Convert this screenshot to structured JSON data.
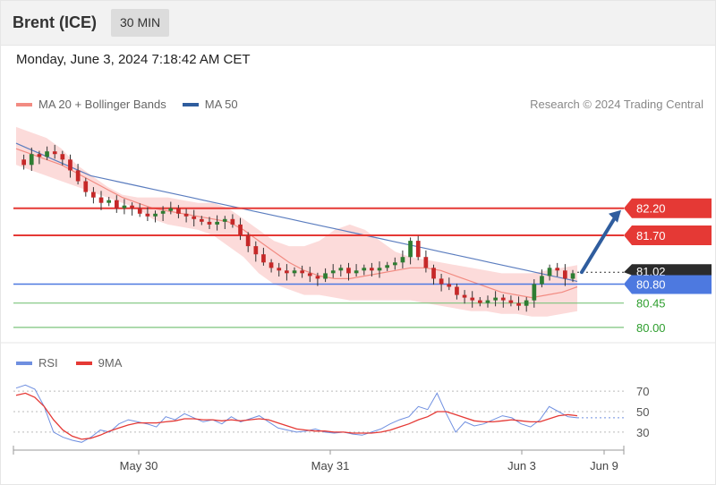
{
  "header": {
    "title": "Brent (ICE)",
    "interval": "30 MIN"
  },
  "datetime": "Monday, June 3, 2024 7:18:42 AM CET",
  "legend": [
    {
      "label": "MA 20 + Bollinger Bands",
      "color": "#f28b82"
    },
    {
      "label": "MA 50",
      "color": "#2f5d9e"
    }
  ],
  "credit": "Research © 2024 Trading Central",
  "rsi_legend": [
    {
      "label": "RSI",
      "color": "#6f8fe0"
    },
    {
      "label": "9MA",
      "color": "#e53935"
    }
  ],
  "colors": {
    "up": "#2e7d32",
    "down": "#c62828",
    "resistance": "#e53935",
    "support": "#4d79e0",
    "target": "#7cc47c",
    "ma20": "#f28b82",
    "ma50": "#5b7dbf",
    "band": "#fbd5d3",
    "arrow": "#2f5d9e"
  },
  "chart_data": [
    {
      "type": "candlestick",
      "title": "Brent (ICE)",
      "x_ticks": [
        "May 30",
        "May 31",
        "Jun 3",
        "Jun 9"
      ],
      "ylim": [
        79.8,
        83.6
      ],
      "last_price": "81.02",
      "levels": [
        {
          "value": 82.2,
          "label": "82.20",
          "kind": "resistance"
        },
        {
          "value": 81.7,
          "label": "81.70",
          "kind": "resistance"
        },
        {
          "value": 80.8,
          "label": "80.80",
          "kind": "support"
        },
        {
          "value": 80.45,
          "label": "80.45",
          "kind": "target"
        },
        {
          "value": 80.0,
          "label": "80.00",
          "kind": "target"
        }
      ],
      "close": [
        83.1,
        83.0,
        83.2,
        83.15,
        83.25,
        83.2,
        83.1,
        82.9,
        82.7,
        82.5,
        82.4,
        82.3,
        82.35,
        82.2,
        82.25,
        82.2,
        82.1,
        82.05,
        82.1,
        82.15,
        82.2,
        82.1,
        82.05,
        82.0,
        81.95,
        81.9,
        81.95,
        82.0,
        81.9,
        81.7,
        81.5,
        81.35,
        81.2,
        81.1,
        81.05,
        81.0,
        81.05,
        81.0,
        80.95,
        80.9,
        81.0,
        81.05,
        81.1,
        81.0,
        81.05,
        81.1,
        81.05,
        81.1,
        81.15,
        81.2,
        81.3,
        81.6,
        81.3,
        81.1,
        80.9,
        80.8,
        80.75,
        80.6,
        80.55,
        80.5,
        80.45,
        80.5,
        80.55,
        80.5,
        80.45,
        80.4,
        80.5,
        80.8,
        80.95,
        81.1,
        81.05,
        80.9,
        81.0
      ],
      "ma50": [
        83.4,
        83.3,
        83.2,
        83.1,
        83.0,
        82.9,
        82.8,
        82.75,
        82.7,
        82.65,
        82.6,
        82.55,
        82.5,
        82.45,
        82.4,
        82.35,
        82.3,
        82.25,
        82.2,
        82.15,
        82.1,
        82.05,
        82.0,
        81.95,
        81.9,
        81.85,
        81.8,
        81.75,
        81.7,
        81.65,
        81.6,
        81.55,
        81.5,
        81.45,
        81.4,
        81.35,
        81.3,
        81.25,
        81.2,
        81.15,
        81.1,
        81.05,
        81.0,
        80.95,
        80.9,
        80.85
      ],
      "ma20": [
        83.3,
        83.2,
        83.1,
        83.0,
        82.85,
        82.7,
        82.55,
        82.4,
        82.3,
        82.2,
        82.15,
        82.1,
        82.05,
        82.0,
        81.95,
        81.8,
        81.6,
        81.4,
        81.2,
        81.05,
        80.95,
        80.9,
        80.9,
        80.95,
        81.0,
        81.05,
        81.1,
        81.1,
        81.05,
        80.95,
        80.85,
        80.75,
        80.65,
        80.6,
        80.55,
        80.6,
        80.65,
        80.75
      ],
      "bb_upper": [
        83.7,
        83.6,
        83.5,
        83.3,
        83.0,
        82.8,
        82.6,
        82.45,
        82.4,
        82.4,
        82.4,
        82.35,
        82.3,
        82.3,
        82.2,
        82.0,
        81.8,
        81.6,
        81.5,
        81.5,
        81.6,
        81.8,
        81.9,
        81.8,
        81.6,
        81.4,
        81.3,
        81.25,
        81.2,
        81.15,
        81.1,
        81.05,
        81.0,
        81.0,
        81.0,
        81.05,
        81.1,
        81.15
      ],
      "bb_lower": [
        83.0,
        82.9,
        82.8,
        82.7,
        82.6,
        82.5,
        82.4,
        82.3,
        82.2,
        82.0,
        81.9,
        81.85,
        81.8,
        81.7,
        81.5,
        81.3,
        81.0,
        80.8,
        80.7,
        80.6,
        80.6,
        80.55,
        80.5,
        80.5,
        80.5,
        80.5,
        80.5,
        80.45,
        80.4,
        80.35,
        80.3,
        80.3,
        80.25,
        80.25,
        80.2,
        80.2,
        80.25,
        80.3
      ]
    },
    {
      "type": "line",
      "title": "RSI",
      "ylim": [
        15,
        85
      ],
      "yticks": [
        30,
        50,
        70
      ],
      "series": [
        {
          "name": "RSI",
          "values": [
            73,
            76,
            72,
            55,
            30,
            25,
            22,
            20,
            25,
            32,
            30,
            38,
            42,
            40,
            38,
            35,
            45,
            42,
            48,
            44,
            40,
            42,
            38,
            45,
            40,
            43,
            46,
            40,
            34,
            32,
            30,
            31,
            33,
            30,
            29,
            30,
            28,
            27,
            30,
            33,
            38,
            42,
            45,
            55,
            52,
            68,
            48,
            30,
            40,
            36,
            38,
            42,
            46,
            44,
            38,
            35,
            42,
            55,
            50,
            45,
            44
          ]
        },
        {
          "name": "9MA",
          "values": [
            66,
            68,
            64,
            55,
            42,
            32,
            26,
            23,
            24,
            27,
            31,
            34,
            37,
            39,
            39,
            39,
            40,
            41,
            43,
            43,
            42,
            42,
            41,
            42,
            41,
            42,
            43,
            42,
            39,
            36,
            33,
            32,
            31,
            31,
            30,
            30,
            29,
            29,
            29,
            30,
            32,
            35,
            38,
            42,
            45,
            50,
            50,
            47,
            44,
            41,
            40,
            40,
            41,
            42,
            41,
            40,
            40,
            43,
            46,
            47,
            46
          ]
        }
      ]
    }
  ]
}
